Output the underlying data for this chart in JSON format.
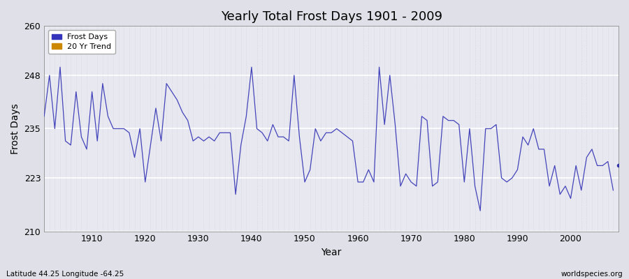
{
  "title": "Yearly Total Frost Days 1901 - 2009",
  "xlabel": "Year",
  "ylabel": "Frost Days",
  "subtitle": "Latitude 44.25 Longitude -64.25",
  "watermark": "worldspecies.org",
  "line_color": "#4444bb",
  "dot_color": "#3333aa",
  "legend_labels": [
    "Frost Days",
    "20 Yr Trend"
  ],
  "legend_colors": [
    "#3333bb",
    "#cc8800"
  ],
  "ylim": [
    210,
    260
  ],
  "xlim": [
    1901,
    2009
  ],
  "yticks": [
    210,
    223,
    235,
    248,
    260
  ],
  "xticks": [
    1910,
    1920,
    1930,
    1940,
    1950,
    1960,
    1970,
    1980,
    1990,
    2000
  ],
  "fig_bg_color": "#e0e0e8",
  "plot_bg_color": "#e8e8f0",
  "grid_h_color": "#ffffff",
  "grid_v_color": "#ccccdd",
  "years": [
    1901,
    1902,
    1903,
    1904,
    1905,
    1906,
    1907,
    1908,
    1909,
    1910,
    1911,
    1912,
    1913,
    1914,
    1915,
    1916,
    1917,
    1918,
    1919,
    1920,
    1921,
    1922,
    1923,
    1924,
    1925,
    1926,
    1927,
    1928,
    1929,
    1930,
    1931,
    1932,
    1933,
    1934,
    1935,
    1936,
    1937,
    1938,
    1939,
    1940,
    1941,
    1942,
    1943,
    1944,
    1945,
    1946,
    1947,
    1948,
    1949,
    1950,
    1951,
    1952,
    1953,
    1954,
    1955,
    1956,
    1957,
    1958,
    1959,
    1960,
    1961,
    1962,
    1963,
    1964,
    1965,
    1966,
    1967,
    1968,
    1969,
    1970,
    1971,
    1972,
    1973,
    1974,
    1975,
    1976,
    1977,
    1978,
    1979,
    1980,
    1981,
    1982,
    1983,
    1984,
    1985,
    1986,
    1987,
    1988,
    1989,
    1990,
    1991,
    1992,
    1993,
    1994,
    1995,
    1996,
    1997,
    1998,
    1999,
    2000,
    2001,
    2002,
    2003,
    2004,
    2005,
    2006,
    2007,
    2008,
    2009
  ],
  "values": [
    238,
    248,
    235,
    250,
    232,
    231,
    244,
    233,
    230,
    244,
    232,
    246,
    238,
    235,
    235,
    235,
    234,
    228,
    235,
    222,
    231,
    240,
    232,
    246,
    244,
    242,
    239,
    237,
    232,
    233,
    232,
    233,
    232,
    234,
    234,
    234,
    219,
    231,
    238,
    250,
    235,
    234,
    232,
    236,
    233,
    233,
    232,
    248,
    233,
    222,
    225,
    235,
    232,
    234,
    234,
    235,
    234,
    233,
    232,
    222,
    222,
    225,
    222,
    250,
    236,
    248,
    236,
    221,
    224,
    222,
    221,
    238,
    237,
    221,
    222,
    238,
    237,
    237,
    236,
    222,
    235,
    221,
    215,
    235,
    235,
    236,
    223,
    222,
    223,
    225,
    233,
    231,
    235,
    230,
    230,
    221,
    226,
    219,
    221,
    218,
    226,
    220,
    228,
    230,
    226,
    226,
    227,
    220,
    226
  ]
}
